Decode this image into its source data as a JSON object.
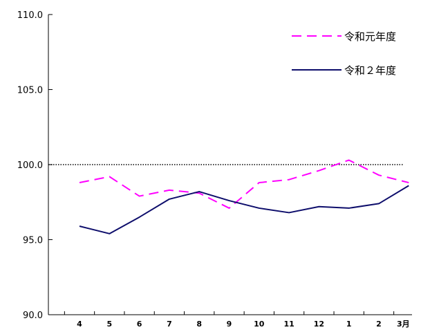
{
  "chart_data": {
    "type": "line",
    "categories": [
      "4",
      "5",
      "6",
      "7",
      "8",
      "9",
      "10",
      "11",
      "12",
      "1",
      "2",
      "3月"
    ],
    "ylim": [
      90.0,
      110.0
    ],
    "yticks": [
      "110.0",
      "105.0",
      "100.0",
      "95.0",
      "90.0"
    ],
    "ytick_values": [
      110.0,
      105.0,
      100.0,
      95.0,
      90.0
    ],
    "reference_line": 100.0,
    "legend_position": "top-right",
    "series": [
      {
        "name": "令和元年度",
        "color": "#ff00ff",
        "style": "dashed",
        "values": [
          98.8,
          99.2,
          97.9,
          98.3,
          98.1,
          97.1,
          98.8,
          99.0,
          99.6,
          100.3,
          99.3,
          98.8
        ]
      },
      {
        "name": "令和２年度",
        "color": "#0d0d6b",
        "style": "solid",
        "values": [
          95.9,
          95.4,
          96.5,
          97.7,
          98.2,
          97.6,
          97.1,
          96.8,
          97.2,
          97.1,
          97.4,
          98.6
        ]
      }
    ],
    "colors": {
      "axis": "#000000",
      "reference": "#000000"
    }
  }
}
